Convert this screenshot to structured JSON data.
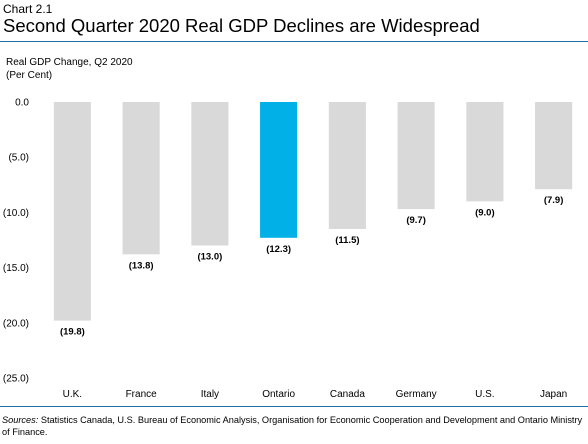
{
  "header": {
    "chart_label": "Chart 2.1",
    "title": "Second Quarter 2020 Real GDP Declines are Widespread"
  },
  "axis_title_line1": "Real GDP Change, Q2 2020",
  "axis_title_line2": "(Per Cent)",
  "footer": {
    "sources_label": "Sources:",
    "sources_text": " Statistics Canada, U.S. Bureau of Economic Analysis, Organisation for Economic Cooperation and Development and Ontario Ministry of Finance."
  },
  "colors": {
    "bar_default": "#d9d9d9",
    "bar_highlight": "#00b0e6",
    "rule": "#1f6fa8"
  },
  "chart_data": {
    "type": "bar",
    "title": "Second Quarter 2020 Real GDP Declines are Widespread",
    "ylabel": "Real GDP Change, Q2 2020 (Per Cent)",
    "xlabel": "",
    "categories": [
      "U.K.",
      "France",
      "Italy",
      "Ontario",
      "Canada",
      "Germany",
      "U.S.",
      "Japan"
    ],
    "values": [
      -19.8,
      -13.8,
      -13.0,
      -12.3,
      -11.5,
      -9.7,
      -9.0,
      -7.9
    ],
    "data_labels": [
      "(19.8)",
      "(13.8)",
      "(13.0)",
      "(12.3)",
      "(11.5)",
      "(9.7)",
      "(9.0)",
      "(7.9)"
    ],
    "highlight": "Ontario",
    "ylim": [
      -25,
      0
    ],
    "yticks": [
      0,
      -5,
      -10,
      -15,
      -20,
      -25
    ],
    "ytick_labels": [
      "0.0",
      "(5.0)",
      "(10.0)",
      "(15.0)",
      "(20.0)",
      "(25.0)"
    ],
    "grid": false,
    "legend": "none"
  }
}
